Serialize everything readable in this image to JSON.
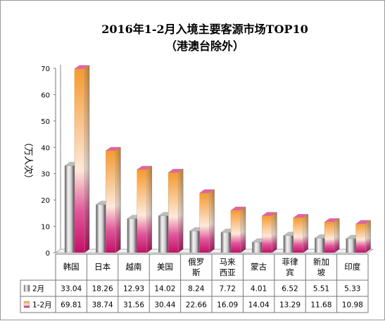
{
  "chart_data": {
    "type": "bar",
    "title": "2016年1-2月入境主要客源市场TOP10",
    "subtitle": "（港澳台除外）",
    "ylabel": "（万人次）",
    "ylim": [
      0,
      70
    ],
    "yticks": [
      0,
      10,
      20,
      30,
      40,
      50,
      60,
      70
    ],
    "categories": [
      [
        "韩国"
      ],
      [
        "日本"
      ],
      [
        "越南"
      ],
      [
        "美国"
      ],
      [
        "俄罗",
        "斯"
      ],
      [
        "马来",
        "西亚"
      ],
      [
        "蒙古"
      ],
      [
        "菲律",
        "宾"
      ],
      [
        "新加",
        "坡"
      ],
      [
        "印度"
      ]
    ],
    "series": [
      {
        "name": "2月",
        "values": [
          33.04,
          18.26,
          12.93,
          14.02,
          8.24,
          7.72,
          4.01,
          6.52,
          5.51,
          5.33
        ]
      },
      {
        "name": "1-2月",
        "values": [
          69.81,
          38.74,
          31.56,
          30.44,
          22.66,
          16.09,
          14.04,
          13.29,
          11.68,
          10.98
        ]
      }
    ],
    "data_table": true,
    "colors": {
      "s1_dark": "#4a4a4a",
      "s1_light": "#f2f2f2",
      "s2_top": "#f5a03a",
      "s2_mid": "#fde7d6",
      "s2_bottom": "#d4136f",
      "s2_cap": "#e9609e",
      "s1_cap": "#bdbdbd"
    }
  }
}
